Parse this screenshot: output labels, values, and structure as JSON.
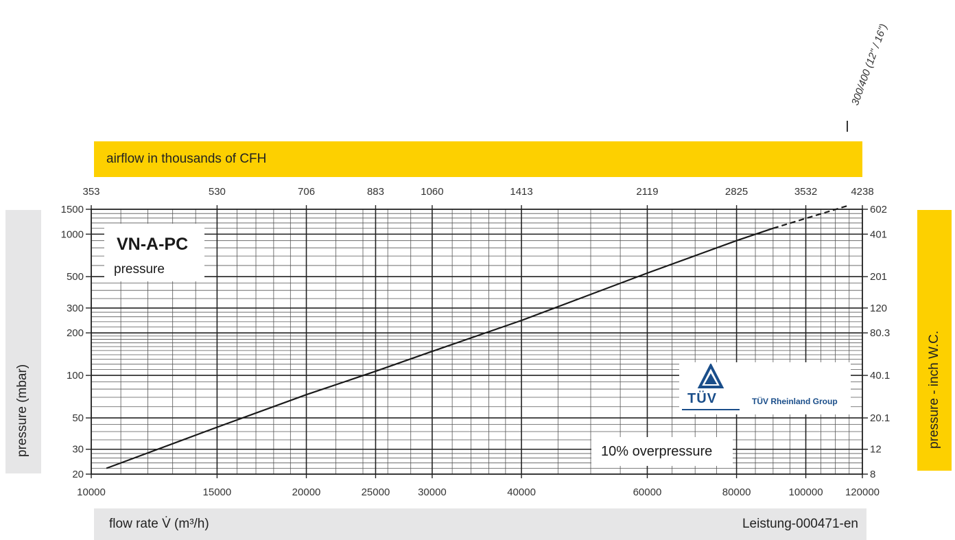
{
  "header": {
    "top_axis_title": "airflow in thousands of CFH"
  },
  "footer": {
    "bottom_axis_title": "flow rate V̇ (m³/h)",
    "figure_code": "Leistung-000471-en"
  },
  "left_axis_title": "pressure (mbar)",
  "right_axis_title": "pressure  - inch W.C.",
  "product_box": {
    "title": "VN-A-PC",
    "subtitle": "pressure"
  },
  "overpressure_label": "10% overpressure",
  "certification": {
    "mark": "TÜV",
    "group": "TÜV Rheinland Group"
  },
  "size_label": "300/400 (12\" / 16\")",
  "colors": {
    "accent_yellow": "#fdd000",
    "band_grey": "#e6e6e7",
    "tuv_blue": "#1a4e8a"
  },
  "chart_data": {
    "type": "line",
    "x_scale": "log",
    "y_scale": "log",
    "xlim": [
      10000,
      120000
    ],
    "ylim": [
      20,
      1500
    ],
    "grid": true,
    "x_ticks": [
      10000,
      15000,
      20000,
      25000,
      30000,
      40000,
      60000,
      80000,
      100000,
      120000
    ],
    "x_tick_labels": [
      "10000",
      "15000",
      "20000",
      "25000",
      "30000",
      "40000",
      "60000",
      "80000",
      "100000",
      "120000"
    ],
    "y_ticks": [
      20,
      30,
      50,
      100,
      200,
      300,
      500,
      1000,
      1500
    ],
    "y_tick_labels": [
      "20",
      "30",
      "50",
      "100",
      "200",
      "300",
      "500",
      "1000",
      "1500"
    ],
    "top_axis": {
      "values": [
        10000,
        15000,
        20000,
        25000,
        30000,
        40000,
        60000,
        80000,
        100000,
        120000
      ],
      "labels": [
        "353",
        "530",
        "706",
        "883",
        "1060",
        "1413",
        "2119",
        "2825",
        "3532",
        "4238"
      ]
    },
    "right_axis": {
      "values": [
        20,
        30,
        50,
        100,
        200,
        300,
        500,
        1000,
        1500
      ],
      "labels": [
        "8",
        "12",
        "20.1",
        "40.1",
        "80.3",
        "120",
        "201",
        "401",
        "602"
      ]
    },
    "series": [
      {
        "x": [
          10500,
          15000,
          20000,
          25000,
          30000,
          40000,
          60000,
          80000,
          90000
        ],
        "y": [
          22,
          43,
          73,
          107,
          148,
          245,
          530,
          900,
          1100
        ],
        "style": "solid"
      },
      {
        "x": [
          90000,
          115000
        ],
        "y": [
          1100,
          1600
        ],
        "style": "dashed"
      }
    ]
  }
}
